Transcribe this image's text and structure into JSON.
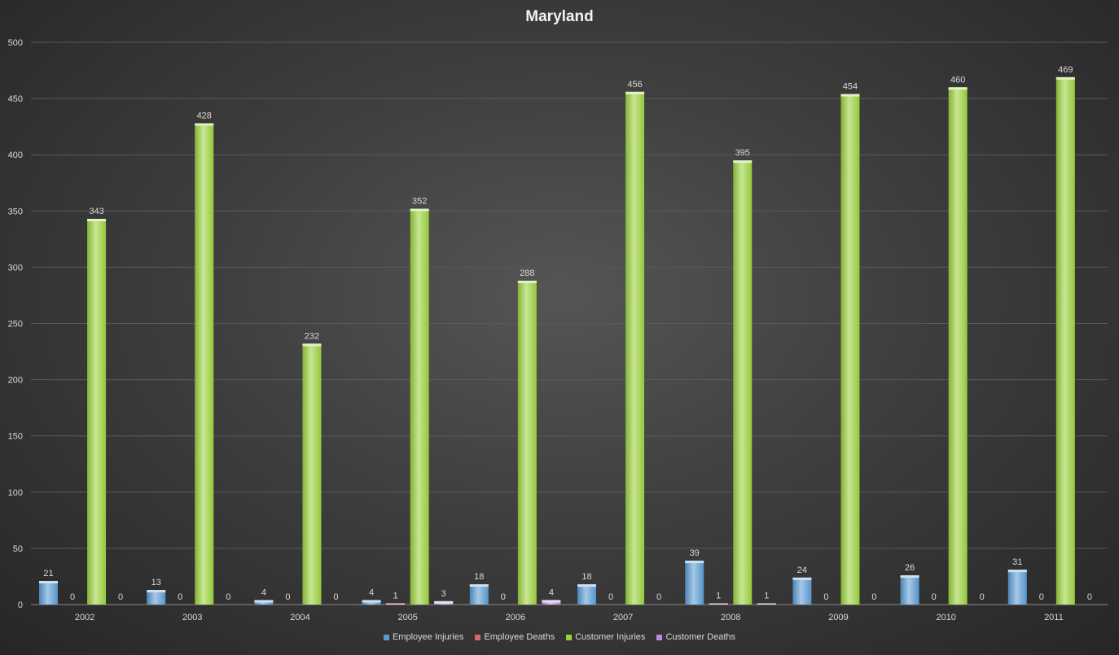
{
  "chart_data": {
    "type": "bar",
    "title": "Maryland",
    "categories": [
      "2002",
      "2003",
      "2004",
      "2005",
      "2006",
      "2007",
      "2008",
      "2009",
      "2010",
      "2011"
    ],
    "ylim": [
      0,
      500
    ],
    "yticks": [
      0,
      50,
      100,
      150,
      200,
      250,
      300,
      350,
      400,
      450,
      500
    ],
    "grid": true,
    "legend_position": "bottom",
    "series": [
      {
        "name": "Employee Injuries",
        "color": "#5b9bd5",
        "values": [
          21,
          13,
          4,
          4,
          18,
          18,
          39,
          24,
          26,
          31
        ]
      },
      {
        "name": "Employee Deaths",
        "color": "#e06666",
        "values": [
          0,
          0,
          0,
          1,
          0,
          0,
          1,
          0,
          0,
          0
        ]
      },
      {
        "name": "Customer Injuries",
        "color": "#9bd23c",
        "values": [
          343,
          428,
          232,
          352,
          288,
          456,
          395,
          454,
          460,
          469
        ]
      },
      {
        "name": "Customer Deaths",
        "color": "#b58fd8",
        "values": [
          0,
          0,
          0,
          3,
          4,
          0,
          1,
          0,
          0,
          0
        ]
      }
    ]
  }
}
